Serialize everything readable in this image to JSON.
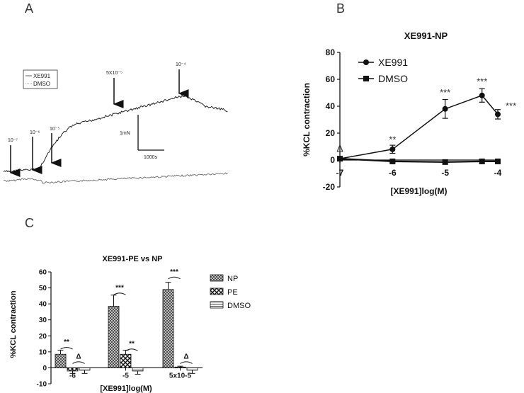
{
  "panels": {
    "a": "A",
    "b": "B",
    "c": "C"
  },
  "trace": {
    "legend": [
      "XE991",
      "DMSO"
    ],
    "concentration_labels": [
      "10⁻⁷",
      "10⁻⁶",
      "10⁻⁵",
      "5X10⁻⁵",
      "10⁻⁴"
    ],
    "scale_force": "1mN",
    "scale_time": "1000s"
  },
  "chart_data": [
    {
      "type": "line",
      "title": "XE991-NP",
      "xlabel": "[XE991]log(M)",
      "ylabel": "%KCL contraction",
      "xlim": [
        -7,
        -4
      ],
      "ylim": [
        -20,
        80
      ],
      "xticks": [
        -7,
        -6,
        -5,
        -4
      ],
      "yticks": [
        -20,
        0,
        20,
        40,
        60,
        80
      ],
      "legend_position": "top-left",
      "series": [
        {
          "name": "XE991",
          "marker": "circle",
          "x": [
            -7,
            -6,
            -5,
            -4.3,
            -4
          ],
          "y": [
            1,
            8,
            38,
            48,
            34
          ],
          "err": [
            1.5,
            3,
            7,
            5,
            3.5
          ]
        },
        {
          "name": "DMSO",
          "marker": "square",
          "x": [
            -7,
            -6,
            -5,
            -4.3,
            -4
          ],
          "y": [
            1,
            -1,
            -1.5,
            -1,
            -1
          ],
          "err": [
            1,
            1,
            1.5,
            1.5,
            1.5
          ]
        }
      ],
      "annotations": [
        {
          "text": "Δ",
          "x": -7,
          "y": 6
        },
        {
          "text": "**",
          "x": -6,
          "y": 13
        },
        {
          "text": "***",
          "x": -5,
          "y": 48
        },
        {
          "text": "***",
          "x": -4.3,
          "y": 56
        },
        {
          "text": "***",
          "x": -3.75,
          "y": 38
        }
      ]
    },
    {
      "type": "bar",
      "title": "XE991-PE vs NP",
      "xlabel": "[XE991]log(M)",
      "ylabel": "%KCL contraction",
      "categories": [
        "-6",
        "-5",
        "5x10-5"
      ],
      "ylim": [
        -10,
        60
      ],
      "yticks": [
        -10,
        0,
        10,
        20,
        30,
        40,
        50,
        60
      ],
      "legend_position": "right",
      "series": [
        {
          "name": "NP",
          "values": [
            8.5,
            38.5,
            49
          ],
          "err": [
            2.5,
            7,
            4.5
          ]
        },
        {
          "name": "PE",
          "values": [
            -2,
            8.5,
            0.5
          ],
          "err": [
            1.5,
            2.5,
            0.5
          ]
        },
        {
          "name": "DMSO",
          "values": [
            -1.5,
            -2,
            -1.5
          ],
          "err": [
            2,
            2,
            2
          ]
        }
      ],
      "brackets": [
        {
          "text": "**",
          "category": 0,
          "y": 13
        },
        {
          "text": "Δ",
          "category": 0,
          "y": 4
        },
        {
          "text": "***",
          "category": 1,
          "y": 47
        },
        {
          "text": "**",
          "category": 1,
          "y": 12
        },
        {
          "text": "***",
          "category": 2,
          "y": 57
        },
        {
          "text": "Δ",
          "category": 2,
          "y": 4
        }
      ]
    }
  ]
}
